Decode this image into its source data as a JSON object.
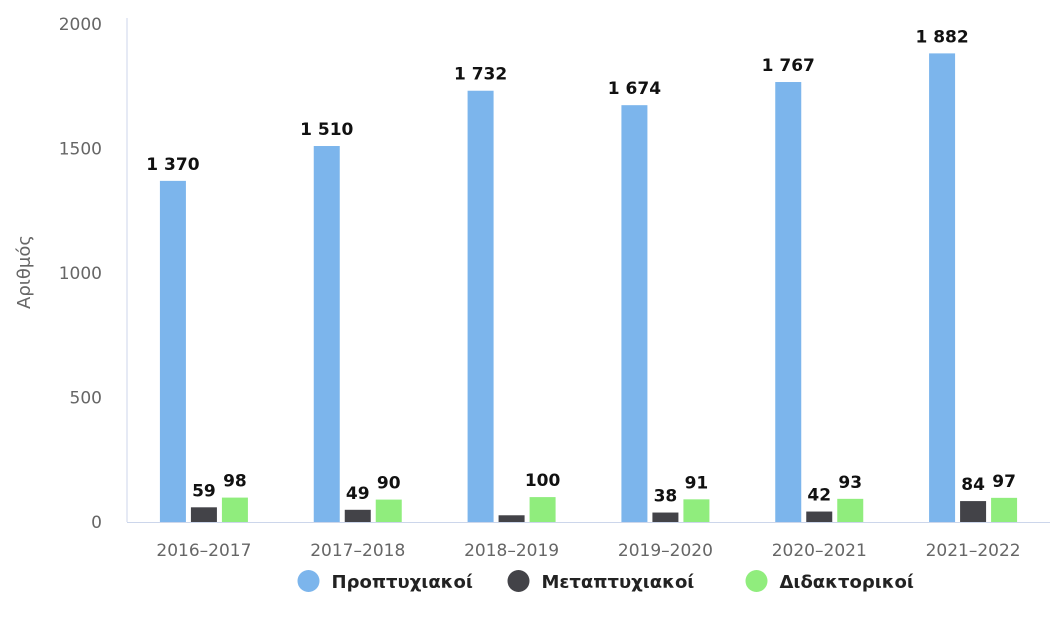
{
  "chart_data": {
    "type": "bar",
    "title": "",
    "xlabel": "",
    "ylabel": "Αριθμός",
    "ylim": [
      0,
      2000
    ],
    "yticks": [
      0,
      500,
      1000,
      1500,
      2000
    ],
    "grid": false,
    "legend_position": "bottom",
    "categories": [
      "2016-2017",
      "2017-2018",
      "2018-2019",
      "2019-2020",
      "2020-2021",
      "2021-2022"
    ],
    "series": [
      {
        "name": "Προπτυχιακοί",
        "color": "#7cb5ec",
        "values": [
          1370,
          1510,
          1732,
          1674,
          1767,
          1882
        ],
        "labels": [
          "1 370",
          "1 510",
          "1 732",
          "1 674",
          "1 767",
          "1 882"
        ]
      },
      {
        "name": "Μεταπτυχιακοί",
        "color": "#434348",
        "values": [
          59,
          49,
          27,
          38,
          42,
          84
        ],
        "labels": [
          "59",
          "49",
          "",
          "38",
          "42",
          "84"
        ]
      },
      {
        "name": "Διδακτορικοί",
        "color": "#90ed7d",
        "values": [
          98,
          90,
          100,
          91,
          93,
          97
        ],
        "labels": [
          "98",
          "90",
          "100",
          "91",
          "93",
          "97"
        ]
      }
    ]
  }
}
